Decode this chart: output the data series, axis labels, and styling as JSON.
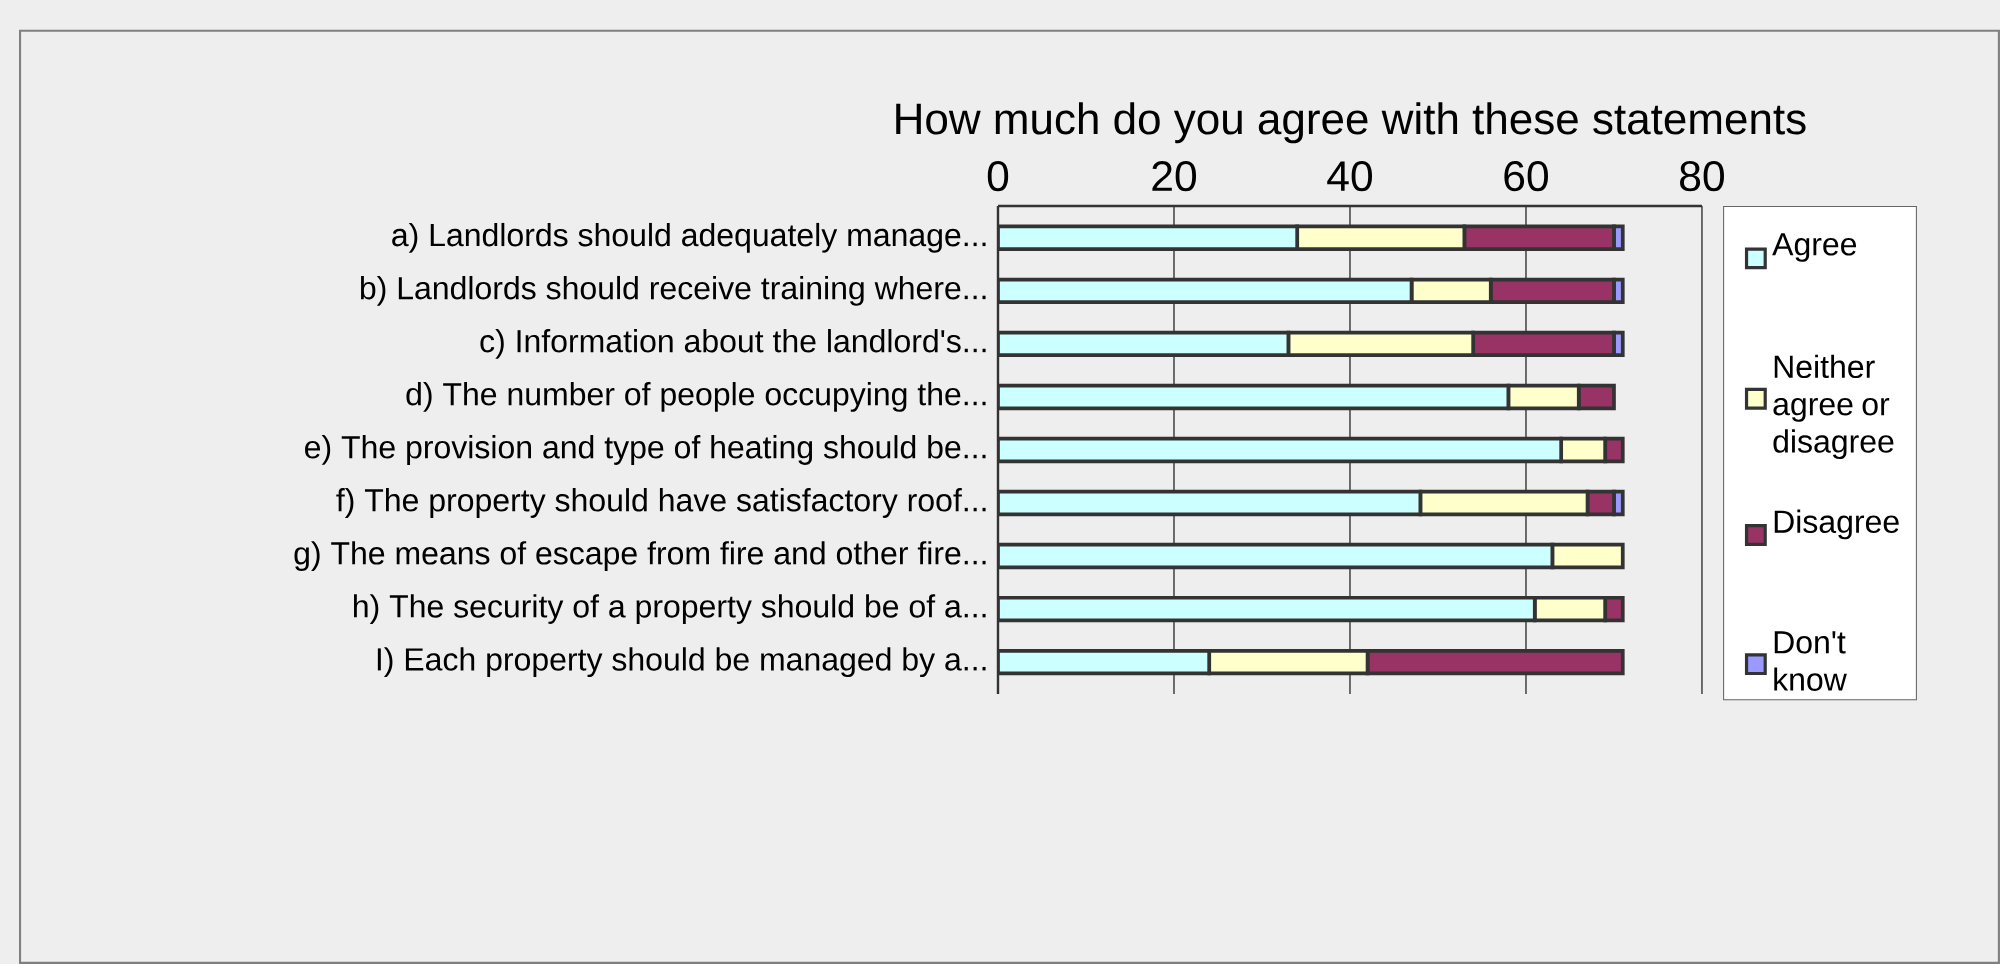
{
  "chart_data": {
    "type": "bar",
    "orientation": "horizontal",
    "stacked": true,
    "title": "How much do you agree with these statements",
    "categories": [
      "a) Landlords should adequately manage...",
      "b) Landlords should receive training where...",
      "c) Information about the landlord's...",
      "d) The number of people occupying the...",
      "e) The provision and type of heating should be...",
      "f) The property should have satisfactory roof...",
      "g) The means of escape from fire and other fire...",
      "h) The security of a property should be of a...",
      "I) Each property should be managed by a..."
    ],
    "series": [
      {
        "name": "Agree",
        "color": "#ccffff",
        "values": [
          34,
          47,
          33,
          58,
          64,
          48,
          63,
          61,
          24
        ]
      },
      {
        "name": "Neither agree or disagree",
        "color": "#ffffcc",
        "values": [
          19,
          9,
          21,
          8,
          5,
          19,
          8,
          8,
          18
        ]
      },
      {
        "name": "Disagree",
        "color": "#993366",
        "values": [
          17,
          14,
          16,
          4,
          2,
          3,
          0,
          2,
          29
        ]
      },
      {
        "name": "Don't know",
        "color": "#9999ff",
        "values": [
          1,
          1,
          1,
          0,
          0,
          1,
          0,
          0,
          0
        ]
      }
    ],
    "xlim": [
      0,
      80
    ],
    "xticks": [
      0,
      20,
      40,
      60,
      80
    ],
    "grid": "x",
    "legend": "right"
  }
}
